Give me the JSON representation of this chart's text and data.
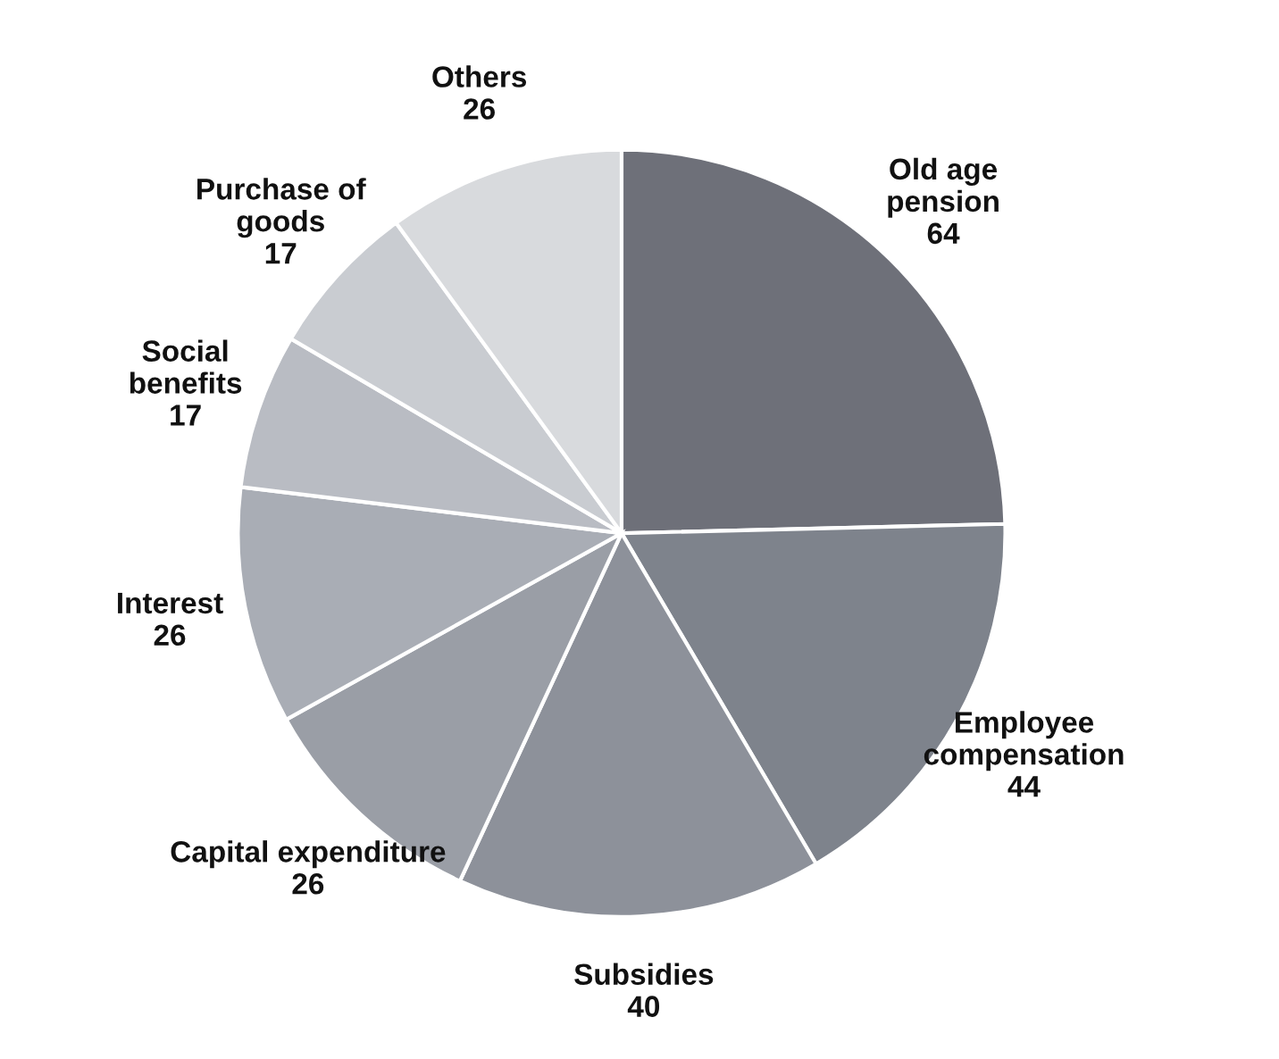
{
  "chart_data": {
    "type": "pie",
    "categories": [
      "Old age\npension",
      "Employee\ncompensation",
      "Subsidies",
      "Capital expenditure",
      "Interest",
      "Social\nbenefits",
      "Purchase of\ngoods",
      "Others"
    ],
    "values": [
      64,
      44,
      40,
      26,
      26,
      17,
      17,
      26
    ],
    "colors": [
      "#6e7079",
      "#7e838c",
      "#8d919a",
      "#9a9ea6",
      "#a9adb5",
      "#b9bcc3",
      "#c9ccd1",
      "#d8dadd"
    ],
    "data_labels": true,
    "legend": false
  }
}
